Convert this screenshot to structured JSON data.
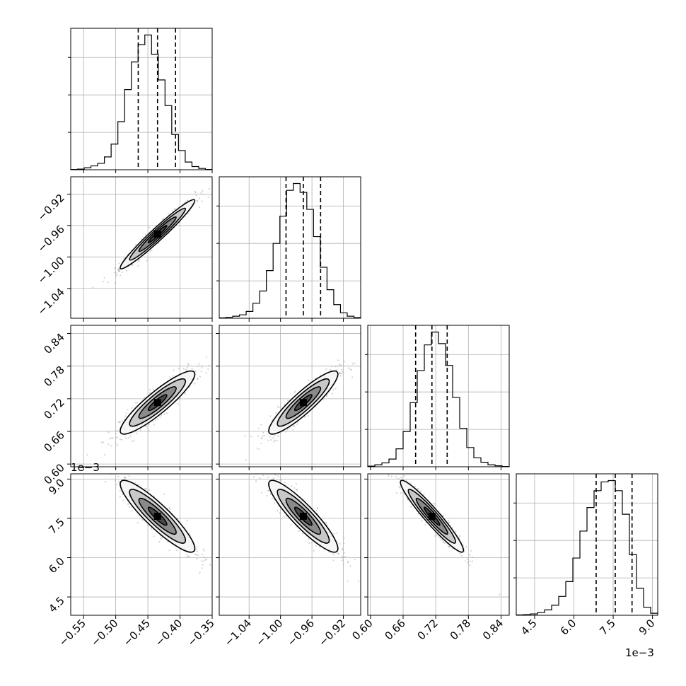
{
  "chart_data": {
    "type": "corner",
    "variables": [
      {
        "range": [
          -0.57,
          -0.35
        ],
        "ticks": [
          -0.55,
          -0.5,
          -0.45,
          -0.4,
          -0.35
        ],
        "tick_labels": [
          "−0.55",
          "−0.50",
          "−0.45",
          "−0.40",
          "−0.35"
        ],
        "quantiles": [
          -0.465,
          -0.435,
          -0.407
        ],
        "hist_counts": [
          0.5,
          1,
          3,
          6,
          10,
          20,
          40,
          75,
          125,
          168,
          195,
          210,
          180,
          140,
          100,
          55,
          30,
          12,
          5,
          2,
          0.5
        ]
      },
      {
        "range": [
          -1.078,
          -0.898
        ],
        "ticks": [
          -1.04,
          -1.0,
          -0.96,
          -0.92
        ],
        "tick_labels": [
          "−1.04",
          "−1.00",
          "−0.96",
          "−0.92"
        ],
        "quantiles": [
          -0.993,
          -0.971,
          -0.949
        ],
        "hist_counts": [
          0.5,
          1.5,
          3,
          5,
          10,
          22,
          40,
          70,
          110,
          150,
          188,
          198,
          185,
          160,
          120,
          75,
          42,
          20,
          8,
          3,
          1
        ]
      },
      {
        "range": [
          0.595,
          0.855
        ],
        "ticks": [
          0.6,
          0.66,
          0.72,
          0.78,
          0.84
        ],
        "tick_labels": [
          "0.60",
          "0.66",
          "0.72",
          "0.78",
          "0.84"
        ],
        "quantiles": [
          0.683,
          0.713,
          0.741
        ],
        "hist_counts": [
          1,
          3,
          6,
          12,
          28,
          55,
          100,
          150,
          190,
          210,
          192,
          158,
          108,
          60,
          30,
          14,
          7,
          3,
          1.5,
          0.5
        ]
      },
      {
        "range": [
          0.0038,
          0.0092
        ],
        "ticks": [
          0.0045,
          0.006,
          0.0075,
          0.009
        ],
        "tick_labels": [
          "4.5",
          "6.0",
          "7.5",
          "9.0"
        ],
        "quantiles": [
          0.00685,
          0.00758,
          0.00822
        ],
        "hist_counts": [
          0.5,
          1,
          2,
          4,
          8,
          15,
          28,
          50,
          85,
          125,
          160,
          185,
          198,
          200,
          185,
          150,
          90,
          40,
          12,
          3
        ]
      }
    ],
    "correlations": [
      [
        1,
        0.97,
        0.9,
        -0.9
      ],
      [
        0.97,
        1,
        0.9,
        -0.9
      ],
      [
        0.9,
        0.9,
        1,
        -0.95
      ],
      [
        -0.9,
        -0.9,
        -0.95,
        1
      ]
    ],
    "offset_label": "1e−3",
    "grid": true
  }
}
